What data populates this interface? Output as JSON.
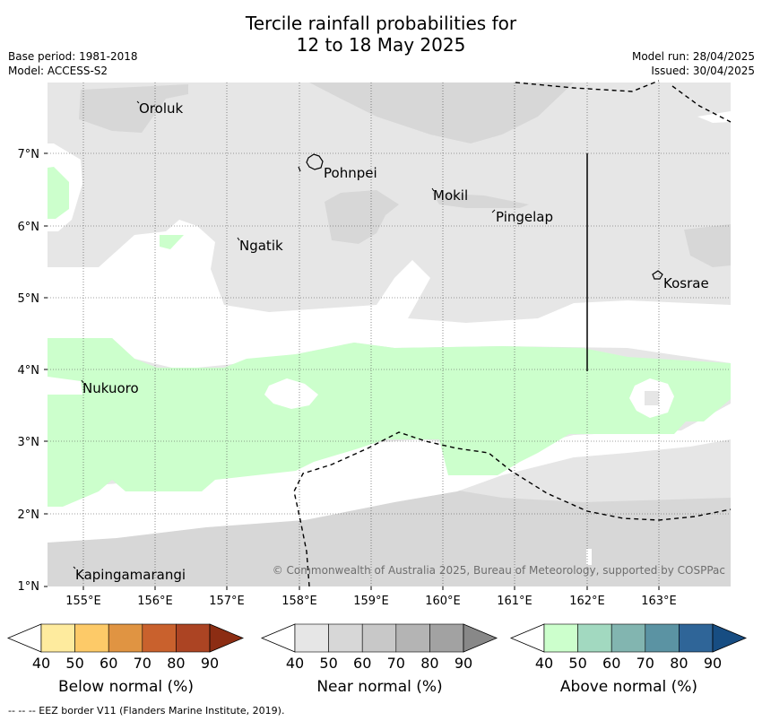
{
  "header": {
    "title_line1": "Tercile rainfall probabilities for",
    "title_line2": "12 to 18 May 2025",
    "base_period": "Base period: 1981-2018",
    "model": "Model: ACCESS-S2",
    "model_run": "Model run: 28/04/2025",
    "issued": "Issued: 30/04/2025"
  },
  "map": {
    "lon_ticks": [
      "155°E",
      "156°E",
      "157°E",
      "158°E",
      "159°E",
      "160°E",
      "161°E",
      "162°E",
      "163°E"
    ],
    "lat_ticks": [
      "7°N",
      "6°N",
      "5°N",
      "4°N",
      "3°N",
      "2°N",
      "1°N"
    ],
    "places": [
      {
        "name": "Oroluk"
      },
      {
        "name": "Pohnpei"
      },
      {
        "name": "Mokil"
      },
      {
        "name": "Pingelap"
      },
      {
        "name": "Ngatik"
      },
      {
        "name": "Kosrae"
      },
      {
        "name": "Nukuoro"
      },
      {
        "name": "Kapingamarangi"
      }
    ],
    "copyright": "© Commonwealth of Australia 2025, Bureau of Meteorology, supported by COSPPac"
  },
  "legends": [
    {
      "label": "Below normal (%)",
      "ticks": [
        "40",
        "50",
        "60",
        "70",
        "80",
        "90"
      ],
      "colors": [
        "#ffffff",
        "#feeb9e",
        "#fdca68",
        "#e09442",
        "#c9612d",
        "#ac4423",
        "#8c2d13"
      ]
    },
    {
      "label": "Near normal (%)",
      "ticks": [
        "40",
        "50",
        "60",
        "70",
        "80",
        "90"
      ],
      "colors": [
        "#ffffff",
        "#e6e6e6",
        "#d7d7d7",
        "#c8c8c8",
        "#b4b4b4",
        "#a2a2a2",
        "#888888"
      ]
    },
    {
      "label": "Above normal (%)",
      "ticks": [
        "40",
        "50",
        "60",
        "70",
        "80",
        "90"
      ],
      "colors": [
        "#ffffff",
        "#ccffcc",
        "#a2d9c0",
        "#82b5b0",
        "#5b93a3",
        "#2f6598",
        "#174d82"
      ]
    }
  ],
  "footer": {
    "eez_note": "--  --  -- EEZ border V11 (Flanders Marine Institute, 2019)."
  }
}
